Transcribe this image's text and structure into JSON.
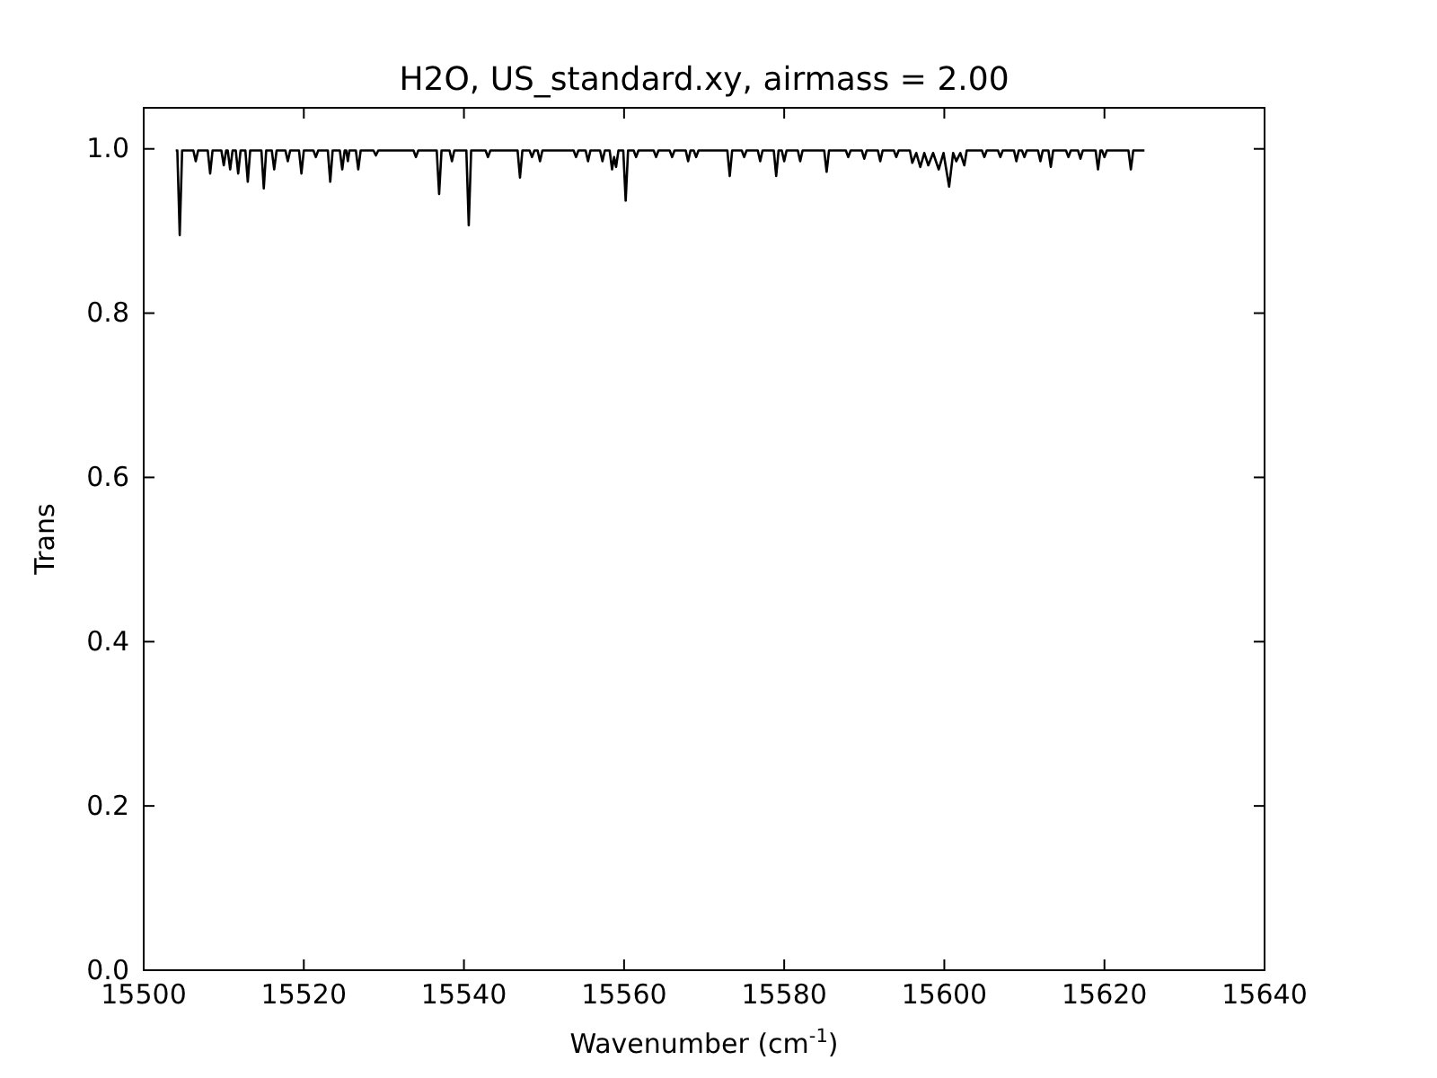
{
  "chart_data": {
    "type": "line",
    "title": "H2O, US_standard.xy, airmass = 2.00",
    "xlabel": "Wavenumber (cm$^{-1}$)",
    "ylabel": "Trans",
    "xlim": [
      15500,
      15640
    ],
    "xticks": [
      15500,
      15520,
      15540,
      15560,
      15580,
      15600,
      15620,
      15640
    ],
    "ylim": [
      0,
      1.05
    ],
    "yticks": [
      {
        "value": 0,
        "label": "0.0"
      },
      {
        "value": 0.2,
        "label": "0.2"
      },
      {
        "value": 0.4,
        "label": "0.4"
      },
      {
        "value": 0.6,
        "label": "0.6"
      },
      {
        "value": 0.8,
        "label": "0.8"
      },
      {
        "value": 1,
        "label": "1.0"
      }
    ],
    "marker": "none",
    "line_style": "solid",
    "series": [
      {
        "color": "#000000",
        "x": [
          15504,
          15504.2,
          15504.5,
          15504.8,
          15506.2,
          15506.5,
          15506.8,
          15508.0,
          15508.3,
          15508.6,
          15509.7,
          15510.0,
          15510.3,
          15510.5,
          15510.8,
          15511.1,
          15511.5,
          15511.8,
          15512.1,
          15512.7,
          15513.0,
          15513.3,
          15514.7,
          15515.0,
          15515.3,
          15516.0,
          15516.3,
          15516.6,
          15517.7,
          15518.0,
          15518.3,
          15519.4,
          15519.7,
          15520.0,
          15521.2,
          15521.5,
          15521.8,
          15523.0,
          15523.3,
          15523.6,
          15524.5,
          15524.8,
          15525.1,
          15525.3,
          15525.5,
          15525.7,
          15526.5,
          15526.8,
          15527.1,
          15528.7,
          15529,
          15529.3,
          15533.7,
          15534,
          15534.3,
          15536.6,
          15536.9,
          15537.2,
          15538.2,
          15538.5,
          15538.8,
          15540.3,
          15540.6,
          15540.9,
          15542.7,
          15543,
          15543.3,
          15546.7,
          15547,
          15547.3,
          15548.2,
          15548.5,
          15548.8,
          15549.2,
          15549.5,
          15549.8,
          15553.7,
          15554,
          15554.3,
          15555.2,
          15555.5,
          15555.8,
          15557.0,
          15557.3,
          15557.6,
          15558.2,
          15558.5,
          15558.75,
          15559.0,
          15559.3,
          15559.9,
          15560.2,
          15560.5,
          15561.2,
          15561.5,
          15561.8,
          15563.7,
          15564,
          15564.3,
          15565.7,
          15566,
          15566.3,
          15567.7,
          15568,
          15568.3,
          15568.7,
          15569,
          15569.3,
          15572.9,
          15573.2,
          15573.5,
          15574.7,
          15575,
          15575.3,
          15576.7,
          15577,
          15577.3,
          15578.7,
          15579,
          15579.3,
          15579.7,
          15580,
          15580.3,
          15581.7,
          15582,
          15582.3,
          15585,
          15585.3,
          15585.6,
          15587.7,
          15588,
          15588.3,
          15589.7,
          15590,
          15590.3,
          15591.7,
          15592,
          15592.3,
          15593.7,
          15594,
          15594.3,
          15595.7,
          15596,
          15596.5,
          15597,
          15597.5,
          15598,
          15598.6,
          15599.3,
          15599.9,
          15600.6,
          15601.1,
          15601.5,
          15602,
          15602.5,
          15602.8,
          15604.7,
          15605,
          15605.3,
          15606.7,
          15607,
          15607.3,
          15608.7,
          15609,
          15609.3,
          15609.7,
          15610,
          15610.3,
          15611.7,
          15612,
          15612.3,
          15613,
          15613.3,
          15613.6,
          15615.2,
          15615.5,
          15615.8,
          15616.7,
          15617,
          15617.3,
          15618.9,
          15619.2,
          15619.5,
          15619.7,
          15620,
          15620.3,
          15623,
          15623.3,
          15623.6,
          15625
        ],
        "values": [
          0.998,
          0.998,
          0.895,
          0.998,
          0.998,
          0.985,
          0.998,
          0.998,
          0.97,
          0.998,
          0.998,
          0.98,
          0.998,
          0.998,
          0.975,
          0.998,
          0.998,
          0.97,
          0.998,
          0.998,
          0.96,
          0.998,
          0.998,
          0.952,
          0.998,
          0.998,
          0.975,
          0.998,
          0.998,
          0.985,
          0.998,
          0.998,
          0.97,
          0.998,
          0.998,
          0.99,
          0.998,
          0.998,
          0.96,
          0.998,
          0.998,
          0.975,
          0.998,
          0.998,
          0.985,
          0.998,
          0.998,
          0.975,
          0.998,
          0.998,
          0.992,
          0.998,
          0.998,
          0.99,
          0.998,
          0.998,
          0.945,
          0.998,
          0.998,
          0.985,
          0.998,
          0.998,
          0.907,
          0.998,
          0.998,
          0.99,
          0.998,
          0.998,
          0.965,
          0.998,
          0.998,
          0.99,
          0.998,
          0.998,
          0.985,
          0.998,
          0.998,
          0.99,
          0.998,
          0.998,
          0.985,
          0.998,
          0.998,
          0.985,
          0.998,
          0.998,
          0.975,
          0.99,
          0.978,
          0.998,
          0.998,
          0.937,
          0.998,
          0.998,
          0.99,
          0.998,
          0.998,
          0.99,
          0.998,
          0.998,
          0.99,
          0.998,
          0.998,
          0.985,
          0.998,
          0.998,
          0.99,
          0.998,
          0.998,
          0.967,
          0.998,
          0.998,
          0.99,
          0.998,
          0.998,
          0.985,
          0.998,
          0.998,
          0.967,
          0.998,
          0.998,
          0.985,
          0.998,
          0.998,
          0.985,
          0.998,
          0.998,
          0.972,
          0.998,
          0.998,
          0.99,
          0.998,
          0.998,
          0.988,
          0.998,
          0.998,
          0.985,
          0.998,
          0.998,
          0.99,
          0.998,
          0.998,
          0.983,
          0.995,
          0.978,
          0.995,
          0.98,
          0.995,
          0.975,
          0.995,
          0.954,
          0.995,
          0.985,
          0.995,
          0.98,
          0.998,
          0.998,
          0.99,
          0.998,
          0.998,
          0.99,
          0.998,
          0.998,
          0.985,
          0.998,
          0.998,
          0.99,
          0.998,
          0.998,
          0.985,
          0.998,
          0.998,
          0.978,
          0.998,
          0.998,
          0.99,
          0.998,
          0.998,
          0.988,
          0.998,
          0.998,
          0.975,
          0.998,
          0.998,
          0.99,
          0.998,
          0.998,
          0.975,
          0.998,
          0.998
        ]
      }
    ]
  }
}
